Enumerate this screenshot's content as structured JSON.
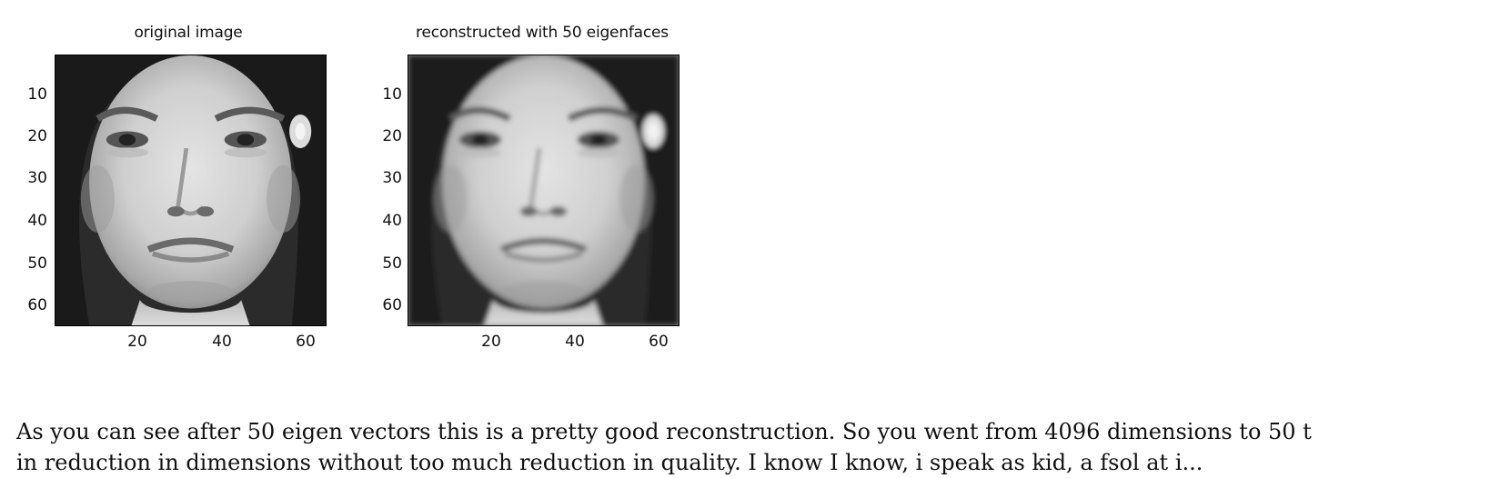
{
  "figure": {
    "panels": [
      {
        "id": "original",
        "title": "original image",
        "y_ticks": [
          "10",
          "20",
          "30",
          "40",
          "50",
          "60"
        ],
        "x_ticks": [
          "20",
          "40",
          "60"
        ],
        "blur": 0
      },
      {
        "id": "reconstructed",
        "title": "reconstructed with 50 eigenfaces",
        "y_ticks": [
          "10",
          "20",
          "30",
          "40",
          "50",
          "60"
        ],
        "x_ticks": [
          "20",
          "40",
          "60"
        ],
        "blur": 1.2
      }
    ]
  },
  "caption": {
    "line1": "As you can see after 50 eigen vectors this is a pretty good reconstruction. So you went from 4096 dimensions to 50 t",
    "line2": "in reduction in dimensions without too much reduction in quality. I know I know, i speak as kid, a fsol at i..."
  }
}
